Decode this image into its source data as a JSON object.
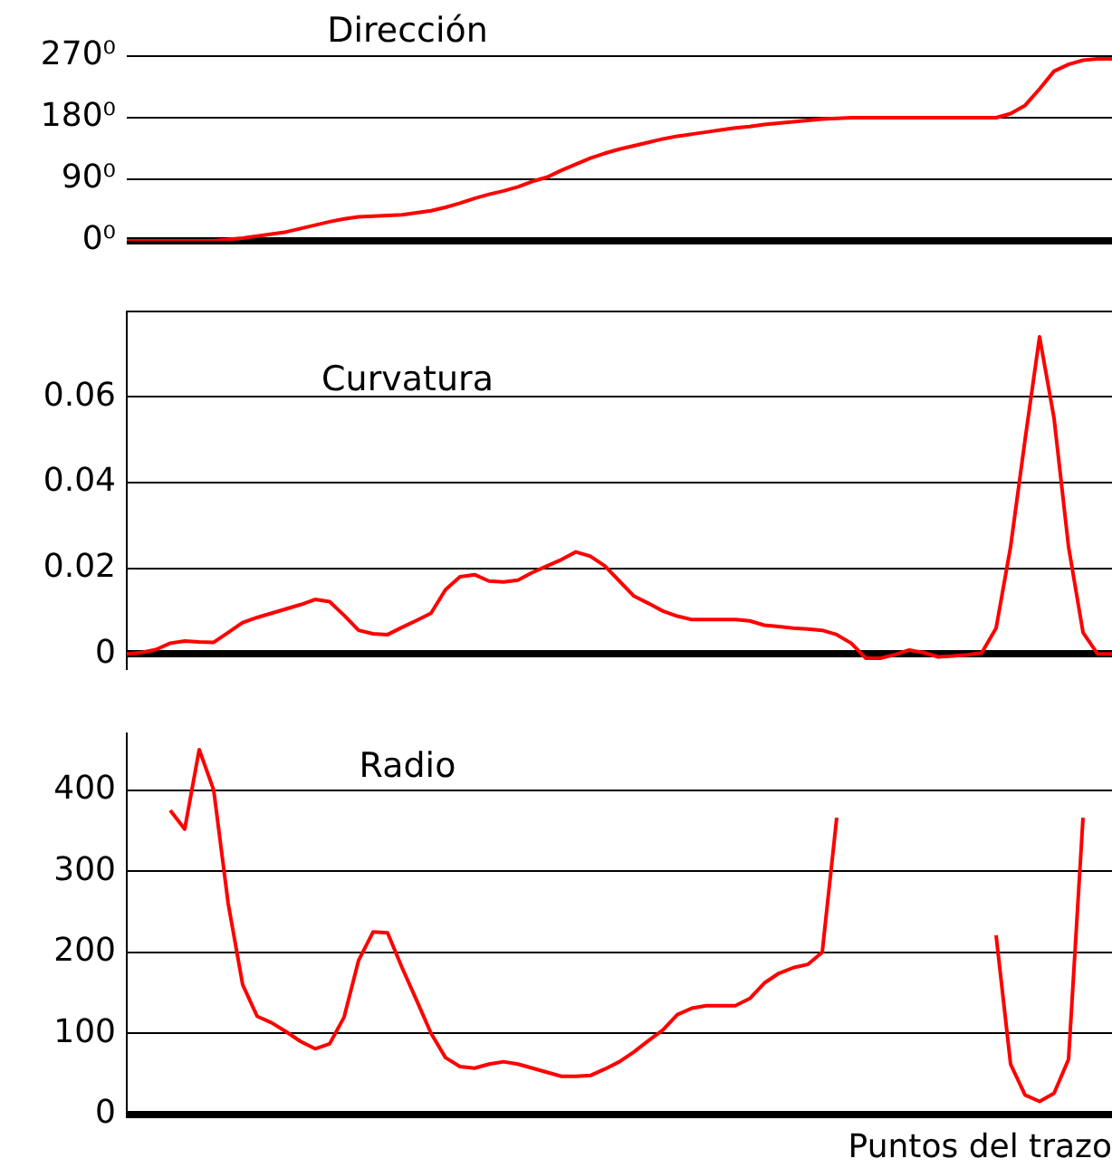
{
  "chart_data": [
    {
      "type": "line",
      "title": "Dirección",
      "categories": [
        null,
        null,
        null,
        null,
        null,
        null,
        null,
        null,
        null,
        null,
        null,
        null,
        null,
        null,
        null,
        null,
        null,
        null,
        null,
        null,
        null,
        null,
        null,
        null,
        null,
        null,
        null,
        null,
        null,
        null,
        null,
        null,
        null,
        null,
        null,
        null,
        null,
        null,
        null,
        null,
        null,
        null,
        null,
        null,
        null,
        null,
        null,
        null,
        null,
        null,
        null,
        null,
        null,
        null,
        null,
        null,
        null,
        null,
        null,
        null,
        null,
        null,
        null,
        null,
        null,
        null,
        null,
        null,
        null
      ],
      "series": [
        {
          "color": "#ff0000",
          "values": [
            0,
            0,
            0,
            0,
            0,
            0,
            0,
            2,
            4,
            7,
            10,
            13,
            18,
            23,
            28,
            32,
            35,
            36,
            37,
            38,
            41,
            44,
            49,
            55,
            62,
            68,
            73,
            79,
            87,
            93,
            103,
            112,
            121,
            128,
            134,
            139,
            144,
            149,
            153,
            156,
            159,
            162,
            165,
            167,
            170,
            172,
            174,
            176,
            178,
            179,
            180,
            180,
            180,
            180,
            180,
            180,
            180,
            180,
            180,
            180,
            180,
            186,
            198,
            222,
            248,
            258,
            264,
            266,
            266
          ]
        }
      ],
      "ylim": [
        0,
        270
      ],
      "yticks": [
        {
          "value": 0,
          "label": "0⁰"
        },
        {
          "value": 90,
          "label": "90⁰"
        },
        {
          "value": 180,
          "label": "180⁰"
        },
        {
          "value": 270,
          "label": "270⁰"
        }
      ],
      "grid": "y",
      "marker": "none",
      "tick_labels": "y"
    },
    {
      "type": "line",
      "title": "Curvatura",
      "categories": [
        null,
        null,
        null,
        null,
        null,
        null,
        null,
        null,
        null,
        null,
        null,
        null,
        null,
        null,
        null,
        null,
        null,
        null,
        null,
        null,
        null,
        null,
        null,
        null,
        null,
        null,
        null,
        null,
        null,
        null,
        null,
        null,
        null,
        null,
        null,
        null,
        null,
        null,
        null,
        null,
        null,
        null,
        null,
        null,
        null,
        null,
        null,
        null,
        null,
        null,
        null,
        null,
        null,
        null,
        null,
        null,
        null,
        null,
        null,
        null,
        null,
        null,
        null,
        null,
        null,
        null,
        null,
        null,
        null
      ],
      "series": [
        {
          "color": "#ff0000",
          "values": [
            0,
            0.0003,
            0.001,
            0.0025,
            0.003,
            0.0028,
            0.0027,
            0.005,
            0.0073,
            0.0085,
            0.0095,
            0.0105,
            0.0115,
            0.0127,
            0.0122,
            0.009,
            0.0055,
            0.0047,
            0.0045,
            0.0062,
            0.0078,
            0.0095,
            0.015,
            0.018,
            0.0185,
            0.017,
            0.0168,
            0.0172,
            0.019,
            0.0205,
            0.022,
            0.0238,
            0.0228,
            0.0205,
            0.017,
            0.0135,
            0.0118,
            0.01,
            0.0088,
            0.008,
            0.008,
            0.008,
            0.008,
            0.0077,
            0.0067,
            0.0064,
            0.006,
            0.0058,
            0.0055,
            0.0045,
            0.0025,
            -0.001,
            -0.001,
            -0.0002,
            0.0009,
            0.0003,
            -0.0007,
            -0.0005,
            -0.0002,
            0.0002,
            0.006,
            0.025,
            0.05,
            0.074,
            0.055,
            0.025,
            0.005,
            0,
            0
          ]
        }
      ],
      "ylim": [
        -0.003,
        0.08
      ],
      "yticks": [
        0,
        0.02,
        0.04,
        0.06,
        {
          "value": 0.08,
          "label": null
        }
      ],
      "grid": "y",
      "marker": "none",
      "tick_labels": "y"
    },
    {
      "type": "line",
      "title": "Radio",
      "xlabel": "Puntos del trazo",
      "categories": [
        null,
        null,
        null,
        null,
        null,
        null,
        null,
        null,
        null,
        null,
        null,
        null,
        null,
        null,
        null,
        null,
        null,
        null,
        null,
        null,
        null,
        null,
        null,
        null,
        null,
        null,
        null,
        null,
        null,
        null,
        null,
        null,
        null,
        null,
        null,
        null,
        null,
        null,
        null,
        null,
        null,
        null,
        null,
        null,
        null,
        null,
        null,
        null,
        null,
        null,
        null,
        null,
        null,
        null,
        null,
        null,
        null,
        null,
        null,
        null,
        null,
        null,
        null,
        null,
        null,
        null,
        null,
        null,
        null
      ],
      "series": [
        {
          "color": "#ff0000",
          "values": [
            null,
            null,
            null,
            375,
            352,
            450,
            400,
            260,
            160,
            121,
            113,
            102,
            90,
            81,
            87,
            120,
            190,
            225,
            224,
            181,
            141,
            100,
            70,
            59,
            57,
            62,
            65,
            62,
            57,
            52,
            47,
            47,
            48,
            56,
            65,
            77,
            91,
            104,
            123,
            131,
            134,
            134,
            134,
            143,
            162,
            174,
            181,
            185,
            200,
            366,
            null,
            null,
            null,
            null,
            null,
            null,
            null,
            null,
            null,
            null,
            221,
            62,
            24,
            16,
            26,
            68,
            366,
            null,
            null
          ]
        }
      ],
      "ylim": [
        0,
        470
      ],
      "yticks": [
        0,
        100,
        200,
        300,
        400
      ],
      "grid": "y",
      "marker": "none",
      "tick_labels": "y"
    }
  ]
}
